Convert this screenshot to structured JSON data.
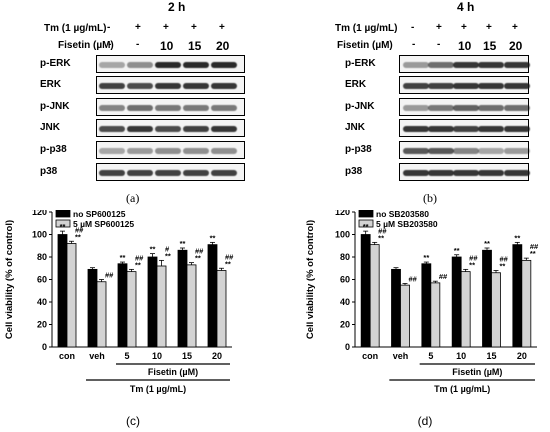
{
  "blots": [
    {
      "time": "2 h",
      "tm_label": "Tm (1 µg/mL)",
      "fis_label": "Fisetin (µM)",
      "tm_marks": [
        "-",
        "+",
        "+",
        "+",
        "+"
      ],
      "fis_marks": [
        "-",
        "-",
        "10",
        "15",
        "20"
      ],
      "rows": [
        "p-ERK",
        "ERK",
        "p-JNK",
        "JNK",
        "p-p38",
        "p38"
      ],
      "caption": "(a)"
    },
    {
      "time": "4 h",
      "tm_label": "Tm (1 µg/mL)",
      "fis_label": "Fisetin (µM)",
      "tm_marks": [
        "-",
        "+",
        "+",
        "+",
        "+"
      ],
      "fis_marks": [
        "-",
        "-",
        "10",
        "15",
        "20"
      ],
      "rows": [
        "p-ERK",
        "ERK",
        "p-JNK",
        "JNK",
        "p-p38",
        "p38"
      ],
      "caption": "(b)"
    }
  ],
  "chart_data": [
    {
      "type": "bar",
      "caption": "(c)",
      "ylabel": "Cell viability (% of control)",
      "ylim": [
        0,
        120
      ],
      "yticks": [
        0,
        20,
        40,
        60,
        80,
        100,
        120
      ],
      "categories": [
        "con",
        "veh",
        "5",
        "10",
        "15",
        "20"
      ],
      "fisetin_label": "Fisetin (µM)",
      "tm_label": "Tm (1 µg/mL)",
      "series": [
        {
          "name": "no SP600125",
          "color": "#000000",
          "values": [
            100,
            69,
            74,
            80,
            86,
            91
          ],
          "errors": [
            3,
            1.5,
            1.5,
            3,
            2,
            2
          ],
          "sig": [
            "**",
            "",
            "**",
            "**",
            "**",
            "**"
          ]
        },
        {
          "name": "5 µM SP600125",
          "color": "#d3d3d3",
          "values": [
            92,
            58,
            67,
            72,
            73,
            68
          ],
          "errors": [
            2,
            2,
            2,
            5,
            2,
            2
          ],
          "sig": [
            "##\n**",
            "##",
            "##\n**",
            "#\n**",
            "##\n**",
            "##\n**"
          ]
        }
      ]
    },
    {
      "type": "bar",
      "caption": "(d)",
      "ylabel": "Cell viability (% of control)",
      "ylim": [
        0,
        120
      ],
      "yticks": [
        0,
        20,
        40,
        60,
        80,
        100,
        120
      ],
      "categories": [
        "con",
        "veh",
        "5",
        "10",
        "15",
        "20"
      ],
      "fisetin_label": "Fisetin (µM)",
      "tm_label": "Tm (1 µg/mL)",
      "series": [
        {
          "name": "no SB203580",
          "color": "#000000",
          "values": [
            100,
            69,
            74,
            80,
            86,
            91
          ],
          "errors": [
            3,
            1.5,
            1.5,
            2,
            2,
            2
          ],
          "sig": [
            "**",
            "",
            "**",
            "**",
            "**",
            "**"
          ]
        },
        {
          "name": "5 µM SB203580",
          "color": "#d3d3d3",
          "values": [
            91,
            55,
            57,
            67,
            66,
            77
          ],
          "errors": [
            2,
            1.5,
            1.5,
            2,
            2,
            2
          ],
          "sig": [
            "##\n**",
            "##",
            "##",
            "##\n**",
            "##\n**",
            "##\n**"
          ]
        }
      ]
    }
  ]
}
